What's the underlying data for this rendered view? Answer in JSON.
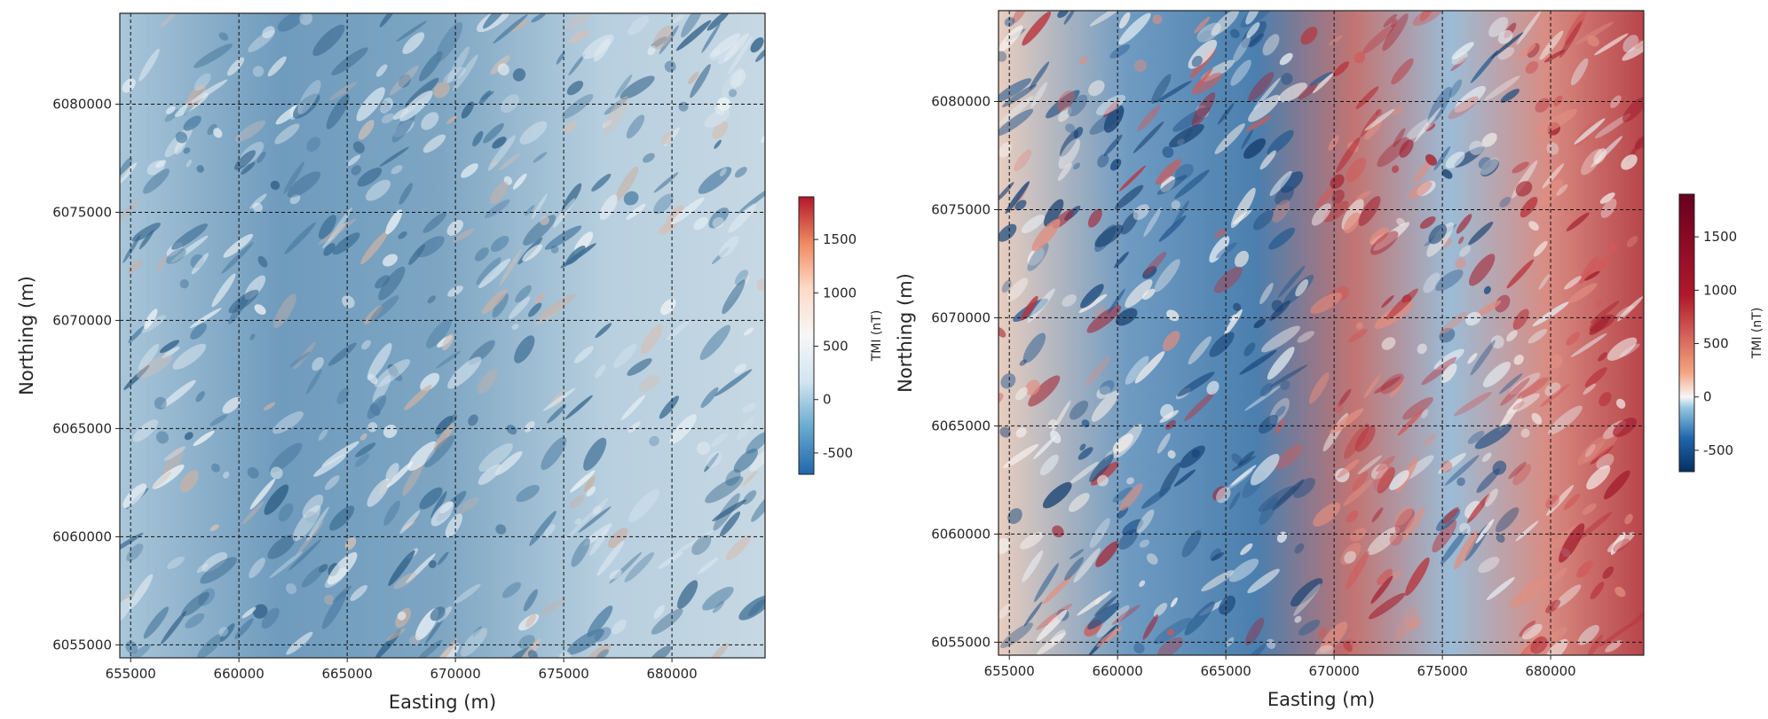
{
  "chart_data": [
    {
      "type": "heatmap",
      "title": "",
      "xlabel": "Easting (m)",
      "ylabel": "Northing (m)",
      "xlim": [
        654500,
        684300
      ],
      "ylim": [
        6054400,
        6084200
      ],
      "xticks": [
        655000,
        660000,
        665000,
        670000,
        675000,
        680000
      ],
      "yticks": [
        6055000,
        6060000,
        6065000,
        6070000,
        6075000,
        6080000
      ],
      "grid": true,
      "grid_style": "dashed",
      "colormap": "RdBu_r",
      "colormap_normalization": "linear",
      "hillshade": true,
      "colorbar": {
        "label": "TMI (nT)",
        "range": [
          -700,
          1900
        ],
        "ticks": [
          -500,
          0,
          500,
          1000,
          1500
        ],
        "placement": "right"
      },
      "colors": [
        "#2166ac",
        "#67a9cf",
        "#d1e5f0",
        "#f7f7f7",
        "#fddbc7",
        "#ef8a62",
        "#b2182b"
      ]
    },
    {
      "type": "heatmap",
      "title": "",
      "xlabel": "Easting (m)",
      "ylabel": "Northing (m)",
      "xlim": [
        654500,
        684300
      ],
      "ylim": [
        6054400,
        6084200
      ],
      "xticks": [
        655000,
        660000,
        665000,
        670000,
        675000,
        680000
      ],
      "yticks": [
        6055000,
        6060000,
        6065000,
        6070000,
        6075000,
        6080000
      ],
      "grid": true,
      "grid_style": "dashed",
      "colormap": "RdBu_r",
      "colormap_normalization": "diverging-centered-at-0",
      "hillshade": true,
      "colorbar": {
        "label": "TMI (nT)",
        "range": [
          -700,
          1900
        ],
        "ticks": [
          -500,
          0,
          500,
          1000,
          1500
        ],
        "placement": "right"
      },
      "colors": [
        "#053061",
        "#2166ac",
        "#92c5de",
        "#f7f7f7",
        "#f4a582",
        "#b2182b",
        "#67001f"
      ]
    }
  ]
}
